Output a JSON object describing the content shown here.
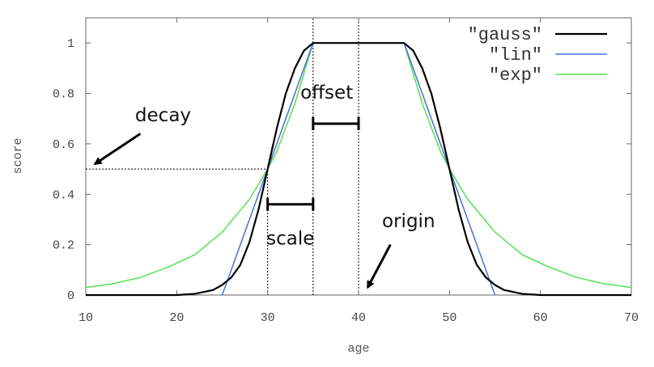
{
  "chart_data": {
    "type": "line",
    "xlabel": "age",
    "ylabel": "score",
    "xlim": [
      10,
      70
    ],
    "ylim": [
      0,
      1.1
    ],
    "x_ticks": [
      {
        "value": 10,
        "label": "10"
      },
      {
        "value": 20,
        "label": "20"
      },
      {
        "value": 30,
        "label": "30"
      },
      {
        "value": 40,
        "label": "40"
      },
      {
        "value": 50,
        "label": "50"
      },
      {
        "value": 60,
        "label": "60"
      },
      {
        "value": 70,
        "label": "70"
      }
    ],
    "y_ticks": [
      {
        "value": 0,
        "label": "0"
      },
      {
        "value": 0.2,
        "label": "0.2"
      },
      {
        "value": 0.4,
        "label": "0.4"
      },
      {
        "value": 0.6,
        "label": "0.6"
      },
      {
        "value": 0.8,
        "label": "0.8"
      },
      {
        "value": 1,
        "label": "1"
      }
    ],
    "grid": false,
    "legend_position": "top-right",
    "series": [
      {
        "name": "\"gauss\"",
        "color": "#000000",
        "x": [
          10,
          20,
          22,
          24,
          25,
          26,
          27,
          28,
          29,
          30,
          31,
          32,
          33,
          34,
          35,
          45,
          46,
          47,
          48,
          49,
          50,
          51,
          52,
          53,
          54,
          55,
          56,
          58,
          60,
          70
        ],
        "y": [
          0,
          0,
          0.005,
          0.02,
          0.04,
          0.07,
          0.12,
          0.21,
          0.34,
          0.5,
          0.66,
          0.8,
          0.9,
          0.97,
          1,
          1,
          0.97,
          0.9,
          0.8,
          0.66,
          0.5,
          0.34,
          0.21,
          0.12,
          0.07,
          0.04,
          0.02,
          0.005,
          0,
          0
        ]
      },
      {
        "name": "\"lin\"",
        "color": "#4a6fd8",
        "x": [
          25,
          35,
          45,
          55
        ],
        "y": [
          0,
          1,
          1,
          0
        ]
      },
      {
        "name": "\"exp\"",
        "color": "#55e055",
        "x": [
          10,
          13,
          16,
          19,
          22,
          25,
          28,
          30,
          31,
          33,
          35,
          45,
          47,
          49,
          50,
          52,
          55,
          58,
          61,
          64,
          67,
          70
        ],
        "y": [
          0.03,
          0.045,
          0.07,
          0.11,
          0.16,
          0.25,
          0.38,
          0.5,
          0.57,
          0.76,
          1,
          1,
          0.76,
          0.57,
          0.5,
          0.38,
          0.25,
          0.16,
          0.11,
          0.07,
          0.045,
          0.03
        ]
      }
    ],
    "guide_lines": [
      {
        "from": [
          10,
          0.5
        ],
        "to": [
          30,
          0.5
        ]
      },
      {
        "from": [
          30,
          0
        ],
        "to": [
          30,
          0.5
        ]
      },
      {
        "from": [
          35,
          0
        ],
        "to": [
          35,
          1.1
        ]
      },
      {
        "from": [
          40,
          0
        ],
        "to": [
          40,
          1.1
        ]
      }
    ],
    "ranges": [
      {
        "label": "scale",
        "from": 30,
        "to": 35,
        "y": 0.36
      },
      {
        "label": "offset",
        "from": 35,
        "to": 40,
        "y": 0.68
      }
    ],
    "annotations": [
      {
        "text": "decay",
        "x": 18.5,
        "y": 0.69,
        "arrow_from": [
          16,
          0.64
        ],
        "arrow_to": [
          11,
          0.52
        ]
      },
      {
        "text": "offset",
        "x": 36.5,
        "y": 0.78
      },
      {
        "text": "scale",
        "x": 32.5,
        "y": 0.2
      },
      {
        "text": "origin",
        "x": 45.5,
        "y": 0.27,
        "arrow_from": [
          43.5,
          0.2
        ],
        "arrow_to": [
          41,
          0.03
        ]
      }
    ]
  }
}
